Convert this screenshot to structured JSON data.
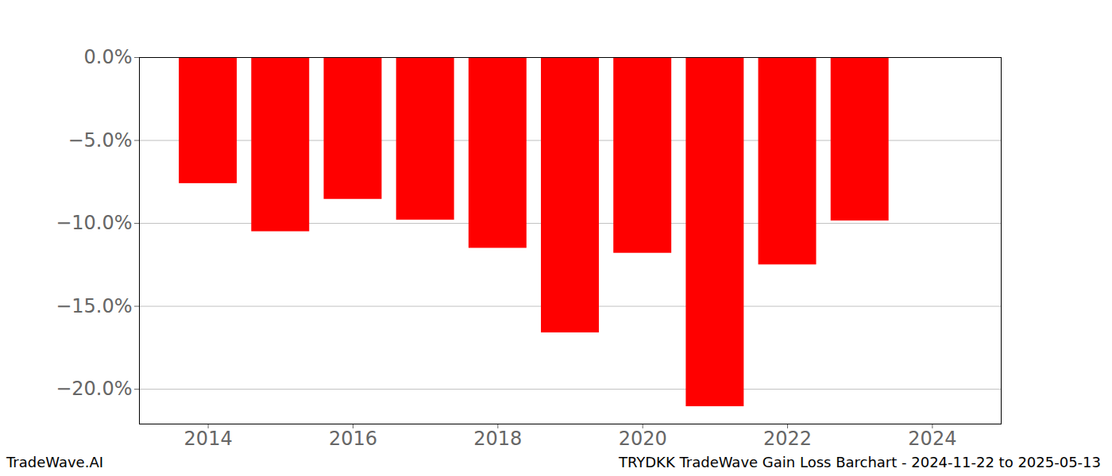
{
  "chart_data": {
    "type": "bar",
    "title": "TRYDKK TradeWave Gain Loss Barchart - 2024-11-22 to 2025-05-13",
    "source": "TradeWave.AI",
    "x": [
      2014,
      2015,
      2016,
      2017,
      2018,
      2019,
      2020,
      2021,
      2022,
      2023
    ],
    "values": [
      -7.6,
      -10.5,
      -8.55,
      -9.8,
      -11.5,
      -16.6,
      -11.8,
      -21.05,
      -12.5,
      -9.85
    ],
    "color": "#ff0000",
    "xlim": [
      2013.05,
      2024.95
    ],
    "xticks": [
      2014,
      2016,
      2018,
      2020,
      2022,
      2024
    ],
    "ylim": [
      -22.1,
      0
    ],
    "yticks": [
      {
        "value": -20,
        "label": "−20.0%"
      },
      {
        "value": -15,
        "label": "−15.0%"
      },
      {
        "value": -10,
        "label": "−10.0%"
      },
      {
        "value": -5,
        "label": "−5.0%"
      },
      {
        "value": 0,
        "label": "0.0%"
      }
    ],
    "grid": true
  }
}
